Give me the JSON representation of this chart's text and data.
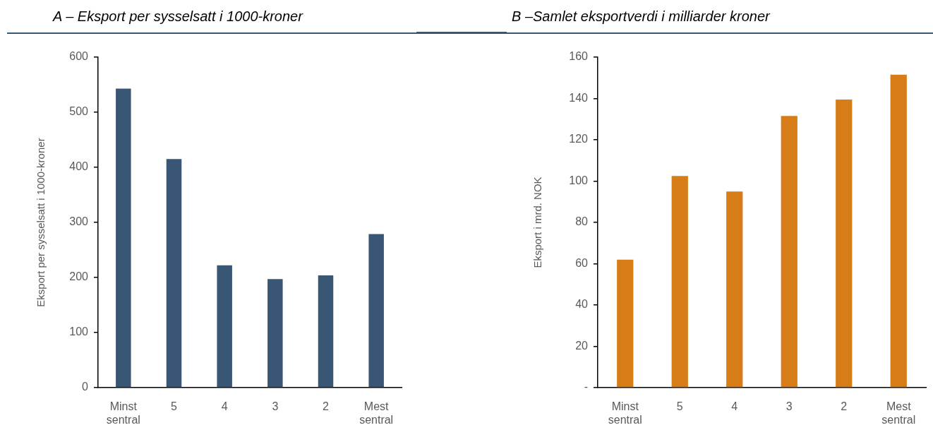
{
  "chart_data": [
    {
      "type": "bar",
      "title": "A – Eksport per sysselsatt i 1000-kroner",
      "ylabel": "Eksport per sysselsatt i 1000-kroner",
      "categories": [
        "Minst sentral",
        "5",
        "4",
        "3",
        "2",
        "Mest sentral"
      ],
      "values": [
        543,
        415,
        222,
        197,
        204,
        279
      ],
      "color": "#3a5675",
      "ylim": [
        0,
        600
      ],
      "yticks": [
        0,
        100,
        200,
        300,
        400,
        500,
        600
      ]
    },
    {
      "type": "bar",
      "title": "B –Samlet eksportverdi i milliarder kroner",
      "ylabel": "Eksport i mrd. NOK",
      "categories": [
        "Minst sentral",
        "5",
        "4",
        "3",
        "2",
        "Mest sentral"
      ],
      "values": [
        62,
        102.5,
        95,
        131.5,
        139.5,
        151.5
      ],
      "color": "#d67d17",
      "ylim": [
        0,
        160
      ],
      "yticks": [
        {
          "value": 0,
          "label": "-"
        },
        20,
        40,
        60,
        80,
        100,
        120,
        140,
        160
      ]
    }
  ]
}
